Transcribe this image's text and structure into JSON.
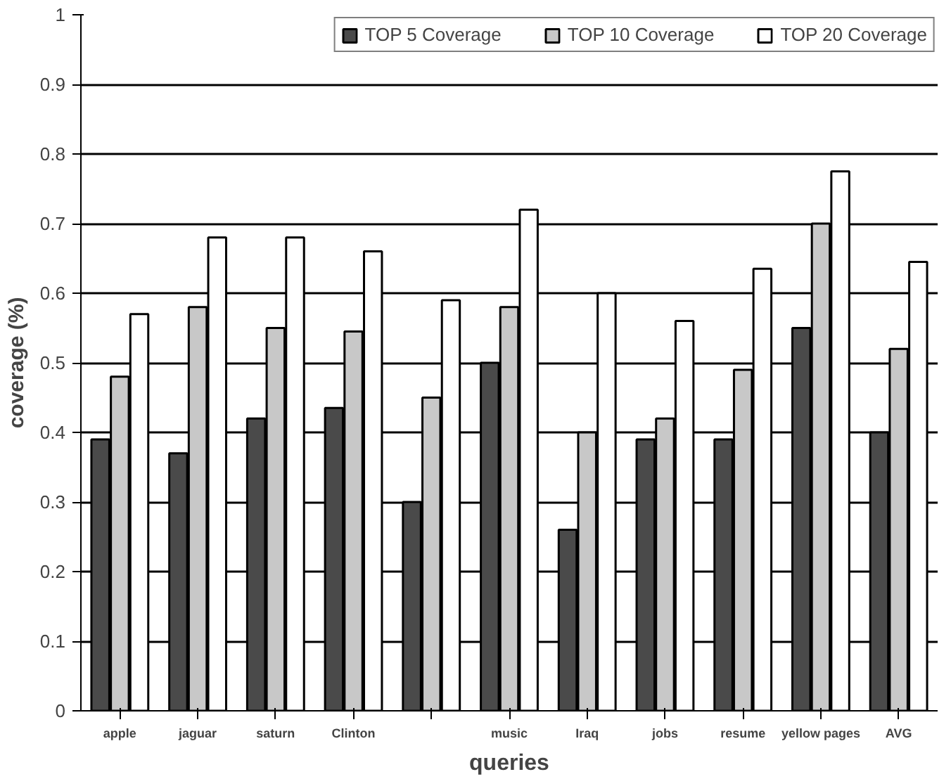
{
  "chart_data": {
    "type": "bar",
    "xlabel": "queries",
    "ylabel": "coverage (%)",
    "categories": [
      "apple",
      "jaguar",
      "saturn",
      "Clinton",
      null,
      "music",
      "Iraq",
      "jobs",
      "resume",
      "yellow pages",
      "AVG"
    ],
    "series": [
      {
        "name": "TOP 5 Coverage",
        "color": "#4a4a4a",
        "values": [
          0.39,
          0.37,
          0.42,
          0.435,
          0.3,
          0.5,
          0.26,
          0.39,
          0.39,
          0.55,
          0.4
        ]
      },
      {
        "name": "TOP 10 Coverage",
        "color": "#c8c8c8",
        "values": [
          0.48,
          0.58,
          0.55,
          0.545,
          0.45,
          0.58,
          0.4,
          0.42,
          0.49,
          0.7,
          0.52
        ]
      },
      {
        "name": "TOP 20 Coverage",
        "color": "#ffffff",
        "values": [
          0.57,
          0.68,
          0.68,
          0.66,
          0.59,
          0.72,
          0.6,
          0.56,
          0.635,
          0.775,
          0.645
        ]
      }
    ],
    "ylim": [
      0,
      1
    ],
    "yticks": [
      0,
      0.1,
      0.2,
      0.3,
      0.4,
      0.5,
      0.6,
      0.7,
      0.8,
      0.9,
      1
    ],
    "grid": "y",
    "legend": "top"
  }
}
